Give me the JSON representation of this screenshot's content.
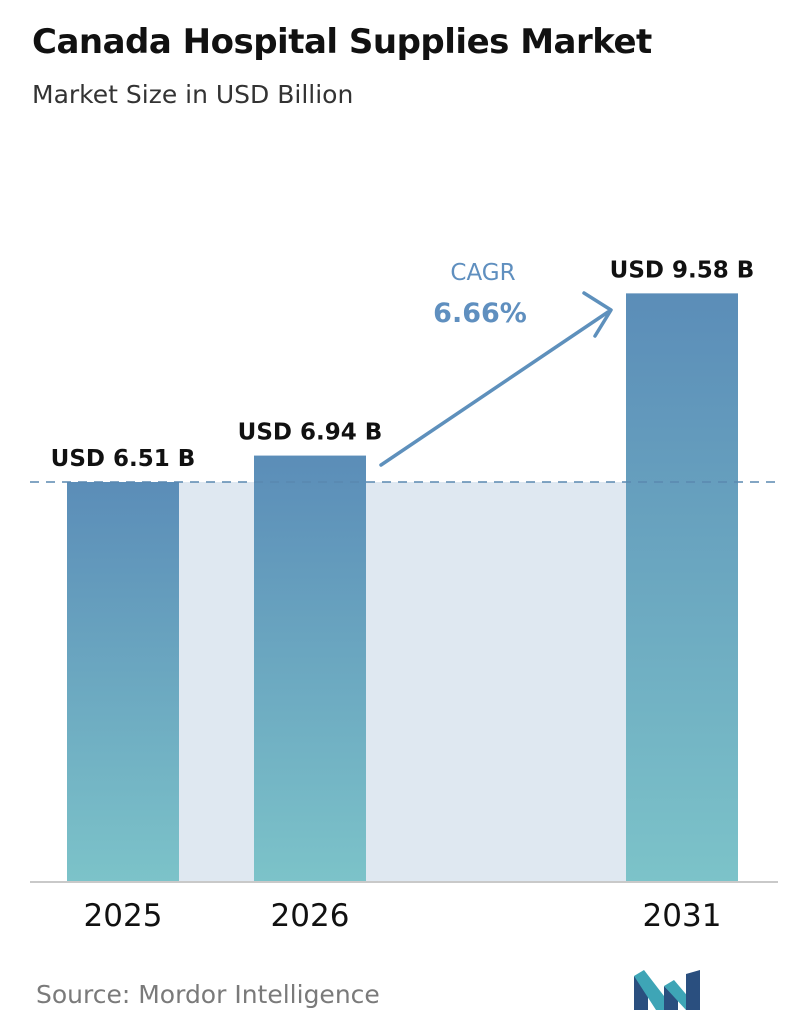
{
  "header": {
    "title": "Canada Hospital Supplies Market",
    "subtitle": "Market Size in USD Billion"
  },
  "cagr": {
    "label": "CAGR",
    "value": "6.66%"
  },
  "footer": {
    "source": "Source:  Mordor Intelligence",
    "logo_icon": "mordor-intelligence-logo-icon"
  },
  "colors": {
    "bar_top": "#5b8db8",
    "bar_bottom": "#7cc3c9",
    "band": "#dfe8f1",
    "reference_line": "#5a88b0",
    "cagr_text": "#5f8fbf",
    "arrow": "#5e90bc"
  },
  "chart_data": {
    "type": "bar",
    "categories": [
      "2025",
      "2026",
      "2031"
    ],
    "values": [
      6.51,
      6.94,
      9.58
    ],
    "value_labels": [
      "USD 6.51 B",
      "USD 6.94 B",
      "USD 9.58 B"
    ],
    "unit": "USD Billion",
    "reference_line_value": 6.51,
    "grid": false,
    "legend": "none"
  }
}
